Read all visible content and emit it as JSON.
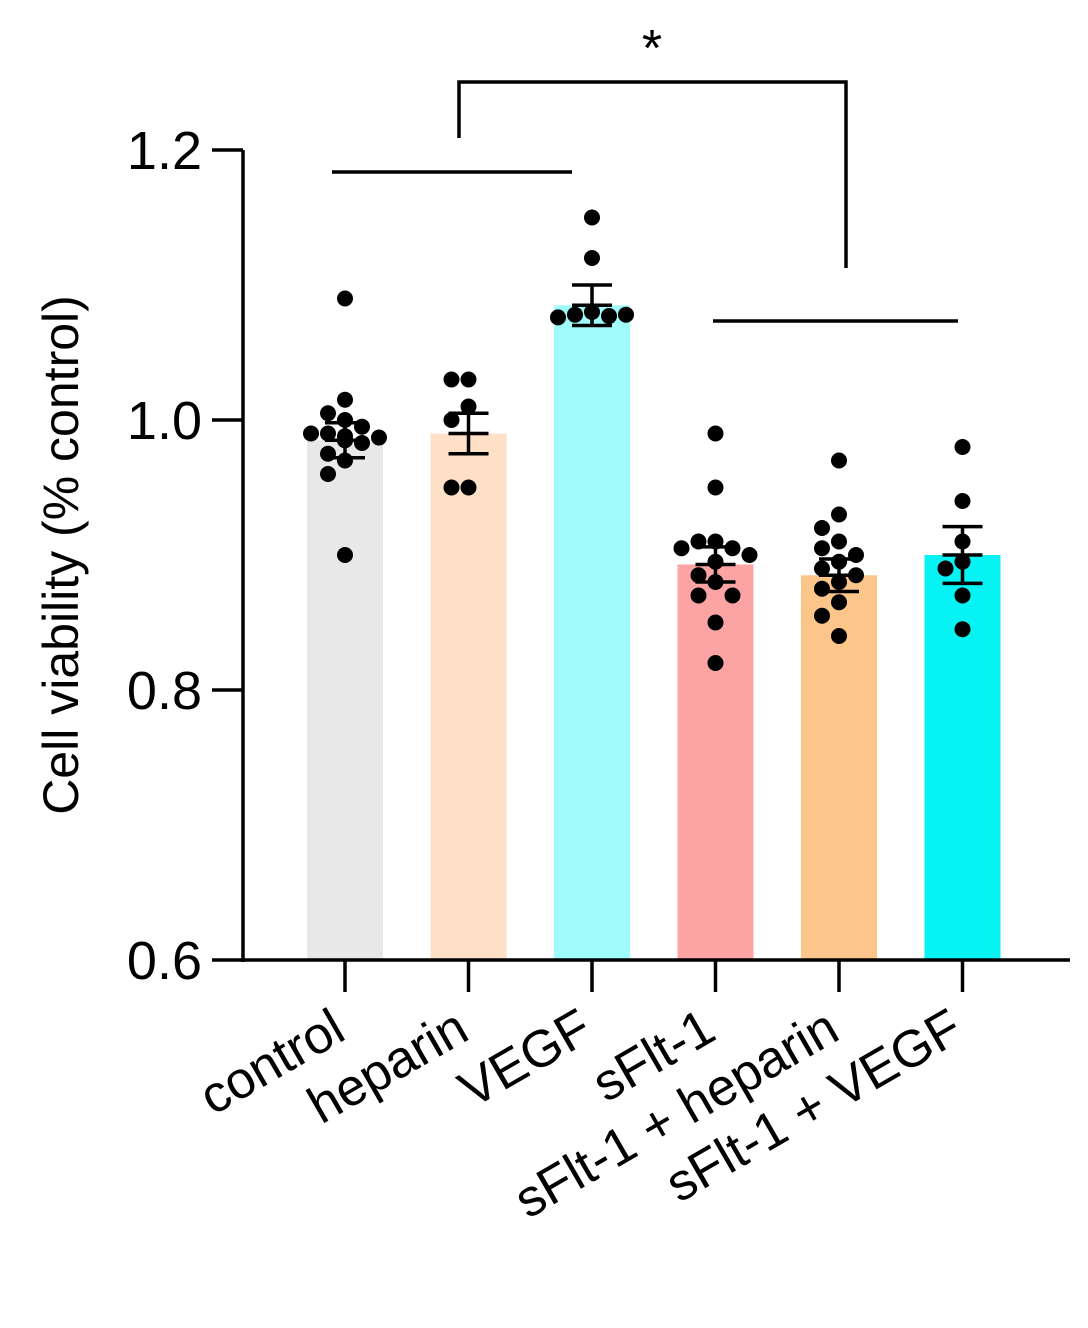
{
  "chart_data": {
    "type": "bar",
    "title": "",
    "xlabel": "",
    "ylabel": "Cell viability (% control)",
    "ylim": [
      0.6,
      1.2
    ],
    "yticks": [
      0.6,
      0.8,
      1.0,
      1.2
    ],
    "ytick_labels": [
      "0.6",
      "0.8",
      "1.0",
      "1.2"
    ],
    "categories": [
      "control",
      "heparin",
      "VEGF",
      "sFlt-1",
      "sFlt-1 + heparin",
      "sFlt-1 + VEGF"
    ],
    "values": [
      0.985,
      0.99,
      1.085,
      0.893,
      0.885,
      0.9
    ],
    "sem": [
      0.013,
      0.015,
      0.015,
      0.013,
      0.012,
      0.021
    ],
    "colors": [
      "#e8e8e8",
      "#fde0c6",
      "#a0fbfb",
      "#fca4a4",
      "#fcc68a",
      "#07f3f3"
    ],
    "points": [
      [
        1.09,
        1.015,
        1.005,
        1.0,
        0.995,
        0.99,
        0.99,
        0.988,
        0.987,
        0.985,
        0.985,
        0.983,
        0.975,
        0.97,
        0.96,
        0.9
      ],
      [
        1.03,
        1.03,
        1.01,
        1.0,
        0.95,
        0.95
      ],
      [
        1.15,
        1.12,
        1.08,
        1.078,
        1.077,
        1.076,
        1.078
      ],
      [
        0.99,
        0.95,
        0.91,
        0.91,
        0.905,
        0.905,
        0.9,
        0.895,
        0.885,
        0.88,
        0.87,
        0.87,
        0.85,
        0.82
      ],
      [
        0.97,
        0.93,
        0.92,
        0.91,
        0.905,
        0.9,
        0.895,
        0.89,
        0.885,
        0.88,
        0.875,
        0.865,
        0.855,
        0.84
      ],
      [
        0.98,
        0.94,
        0.91,
        0.895,
        0.89,
        0.87,
        0.845
      ]
    ],
    "significance": {
      "label": "*",
      "left_group": [
        "control",
        "heparin",
        "VEGF"
      ],
      "right_group": [
        "sFlt-1",
        "sFlt-1 + heparin",
        "sFlt-1 + VEGF"
      ]
    },
    "legend": "none",
    "grid": false
  }
}
